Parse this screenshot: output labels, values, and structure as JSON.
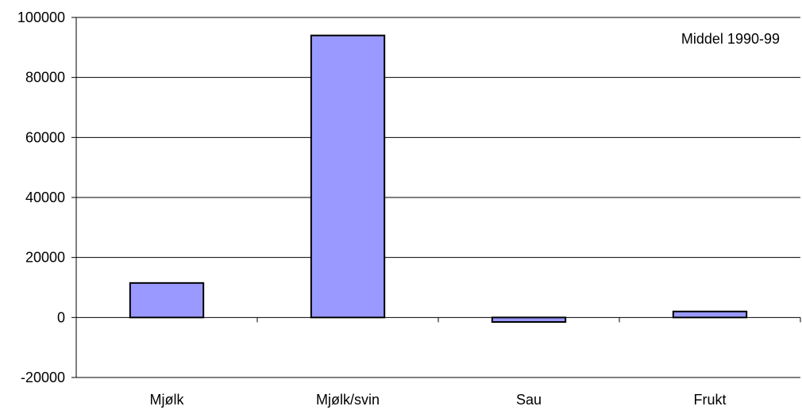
{
  "chart_data": {
    "type": "bar",
    "categories": [
      "Mjølk",
      "Mjølk/svin",
      "Sau",
      "Frukt"
    ],
    "values": [
      11500,
      94000,
      -1500,
      2000
    ],
    "ylim": [
      -20000,
      100000
    ],
    "yticks": [
      -20000,
      0,
      20000,
      40000,
      60000,
      80000,
      100000
    ],
    "ytick_labels": [
      "-20000",
      "0",
      "20000",
      "40000",
      "60000",
      "80000",
      "100000"
    ],
    "annotation": "Middel 1990-99",
    "grid": true,
    "bar_color": "#9999ff",
    "bar_edge_color": "#000000"
  }
}
